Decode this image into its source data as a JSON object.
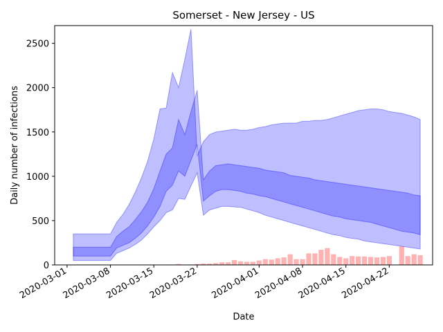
{
  "chart_data": {
    "type": "area",
    "title": "Somerset - New Jersey - US",
    "xlabel": "Date",
    "ylabel": "Daily number of infections",
    "xlim": [
      "2020-02-28",
      "2020-04-29"
    ],
    "ylim": [
      0,
      2700
    ],
    "yticks": [
      0,
      500,
      1000,
      1500,
      2000,
      2500
    ],
    "xticks": [
      "2020-03-01",
      "2020-03-08",
      "2020-03-15",
      "2020-03-22",
      "2020-04-01",
      "2020-04-08",
      "2020-04-15",
      "2020-04-22"
    ],
    "grid": false,
    "legend": "none",
    "colors": {
      "band": "#0000ff",
      "bars": "#ff0000",
      "axis": "#000000"
    },
    "bands": {
      "dates": [
        "2020-03-02",
        "2020-03-03",
        "2020-03-04",
        "2020-03-05",
        "2020-03-06",
        "2020-03-07",
        "2020-03-08",
        "2020-03-09",
        "2020-03-10",
        "2020-03-11",
        "2020-03-12",
        "2020-03-13",
        "2020-03-14",
        "2020-03-15",
        "2020-03-16",
        "2020-03-17",
        "2020-03-18",
        "2020-03-19",
        "2020-03-20",
        "2020-03-21",
        "2020-03-22",
        "2020-03-23",
        "2020-03-24",
        "2020-03-25",
        "2020-03-26",
        "2020-03-27",
        "2020-03-28",
        "2020-03-29",
        "2020-03-30",
        "2020-03-31",
        "2020-04-01",
        "2020-04-02",
        "2020-04-03",
        "2020-04-04",
        "2020-04-05",
        "2020-04-06",
        "2020-04-07",
        "2020-04-08",
        "2020-04-09",
        "2020-04-10",
        "2020-04-11",
        "2020-04-12",
        "2020-04-13",
        "2020-04-14",
        "2020-04-15",
        "2020-04-16",
        "2020-04-17",
        "2020-04-18",
        "2020-04-19",
        "2020-04-20",
        "2020-04-21",
        "2020-04-22",
        "2020-04-23",
        "2020-04-24",
        "2020-04-25",
        "2020-04-26",
        "2020-04-27"
      ],
      "outer_low": [
        50,
        50,
        50,
        50,
        50,
        50,
        50,
        130,
        160,
        190,
        230,
        280,
        350,
        430,
        500,
        590,
        620,
        750,
        740,
        890,
        1040,
        560,
        620,
        640,
        660,
        660,
        655,
        650,
        630,
        610,
        590,
        560,
        540,
        520,
        500,
        480,
        460,
        440,
        420,
        400,
        380,
        360,
        340,
        330,
        310,
        300,
        290,
        270,
        260,
        250,
        240,
        230,
        220,
        210,
        200,
        190,
        180
      ],
      "inner_low": [
        100,
        100,
        100,
        100,
        100,
        100,
        100,
        190,
        220,
        250,
        300,
        360,
        440,
        540,
        660,
        830,
        900,
        1060,
        1000,
        1180,
        1360,
        720,
        780,
        830,
        850,
        850,
        840,
        830,
        810,
        800,
        780,
        770,
        750,
        730,
        710,
        690,
        670,
        650,
        630,
        610,
        590,
        570,
        550,
        540,
        520,
        510,
        500,
        490,
        480,
        460,
        440,
        420,
        400,
        380,
        370,
        360,
        340
      ],
      "inner_high": [
        200,
        200,
        200,
        200,
        200,
        200,
        200,
        320,
        380,
        430,
        510,
        600,
        710,
        860,
        1060,
        1250,
        1320,
        1640,
        1470,
        1730,
        1970,
        960,
        1060,
        1120,
        1130,
        1140,
        1130,
        1120,
        1110,
        1100,
        1090,
        1070,
        1060,
        1050,
        1040,
        1010,
        1000,
        990,
        980,
        960,
        950,
        940,
        930,
        920,
        910,
        900,
        890,
        880,
        870,
        860,
        850,
        840,
        830,
        820,
        810,
        790,
        780
      ],
      "outer_high": [
        350,
        350,
        350,
        350,
        350,
        350,
        350,
        480,
        570,
        680,
        820,
        980,
        1170,
        1420,
        1760,
        1770,
        2170,
        2000,
        2320,
        2660,
        1230,
        1390,
        1470,
        1500,
        1510,
        1520,
        1530,
        1520,
        1520,
        1530,
        1550,
        1560,
        1580,
        1590,
        1600,
        1600,
        1600,
        1620,
        1620,
        1630,
        1630,
        1640,
        1660,
        1680,
        1700,
        1720,
        1740,
        1750,
        1760,
        1760,
        1750,
        1730,
        1720,
        1710,
        1690,
        1670,
        1640
      ]
    },
    "observed": {
      "dates": [
        "2020-03-18",
        "2020-03-19",
        "2020-03-20",
        "2020-03-21",
        "2020-03-22",
        "2020-03-23",
        "2020-03-24",
        "2020-03-25",
        "2020-03-26",
        "2020-03-27",
        "2020-03-28",
        "2020-03-29",
        "2020-03-30",
        "2020-03-31",
        "2020-04-01",
        "2020-04-02",
        "2020-04-03",
        "2020-04-04",
        "2020-04-05",
        "2020-04-06",
        "2020-04-07",
        "2020-04-08",
        "2020-04-09",
        "2020-04-10",
        "2020-04-11",
        "2020-04-12",
        "2020-04-13",
        "2020-04-14",
        "2020-04-15",
        "2020-04-16",
        "2020-04-17",
        "2020-04-18",
        "2020-04-19",
        "2020-04-20",
        "2020-04-21",
        "2020-04-22",
        "2020-04-23",
        "2020-04-24",
        "2020-04-25",
        "2020-04-26",
        "2020-04-27"
      ],
      "values": [
        0,
        10,
        0,
        5,
        10,
        15,
        15,
        20,
        30,
        30,
        55,
        40,
        35,
        35,
        50,
        65,
        60,
        75,
        85,
        120,
        65,
        65,
        130,
        130,
        170,
        190,
        120,
        90,
        75,
        100,
        95,
        95,
        90,
        85,
        90,
        100,
        0,
        210,
        100,
        120,
        110
      ]
    }
  }
}
